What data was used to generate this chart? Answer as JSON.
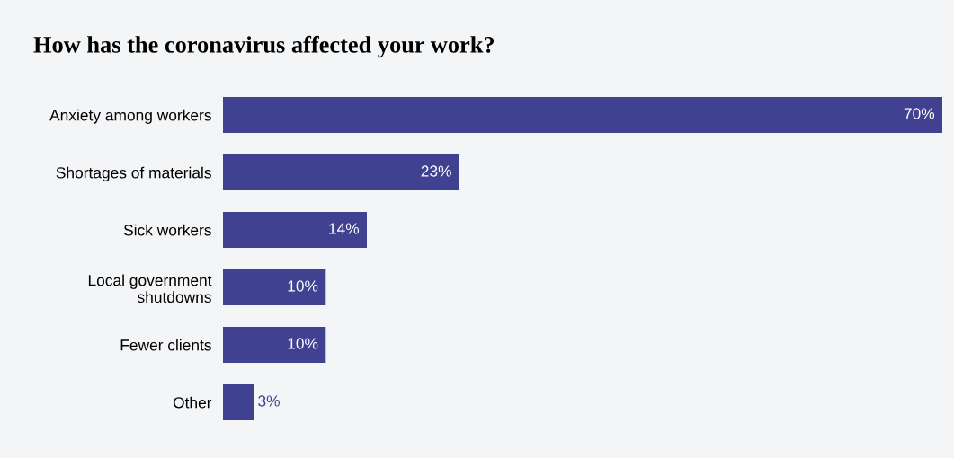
{
  "chart_data": {
    "type": "bar",
    "orientation": "horizontal",
    "title": "How has the coronavirus affected your work?",
    "categories": [
      "Anxiety among workers",
      "Shortages of materials",
      "Sick workers",
      "Local government\nshutdowns",
      "Fewer clients",
      "Other"
    ],
    "values": [
      70,
      23,
      14,
      10,
      10,
      3
    ],
    "value_labels": [
      "70%",
      "23%",
      "14%",
      "10%",
      "10%",
      "3%"
    ],
    "color": "#404191",
    "tick_labels": "y",
    "grid": false,
    "legend": false
  }
}
